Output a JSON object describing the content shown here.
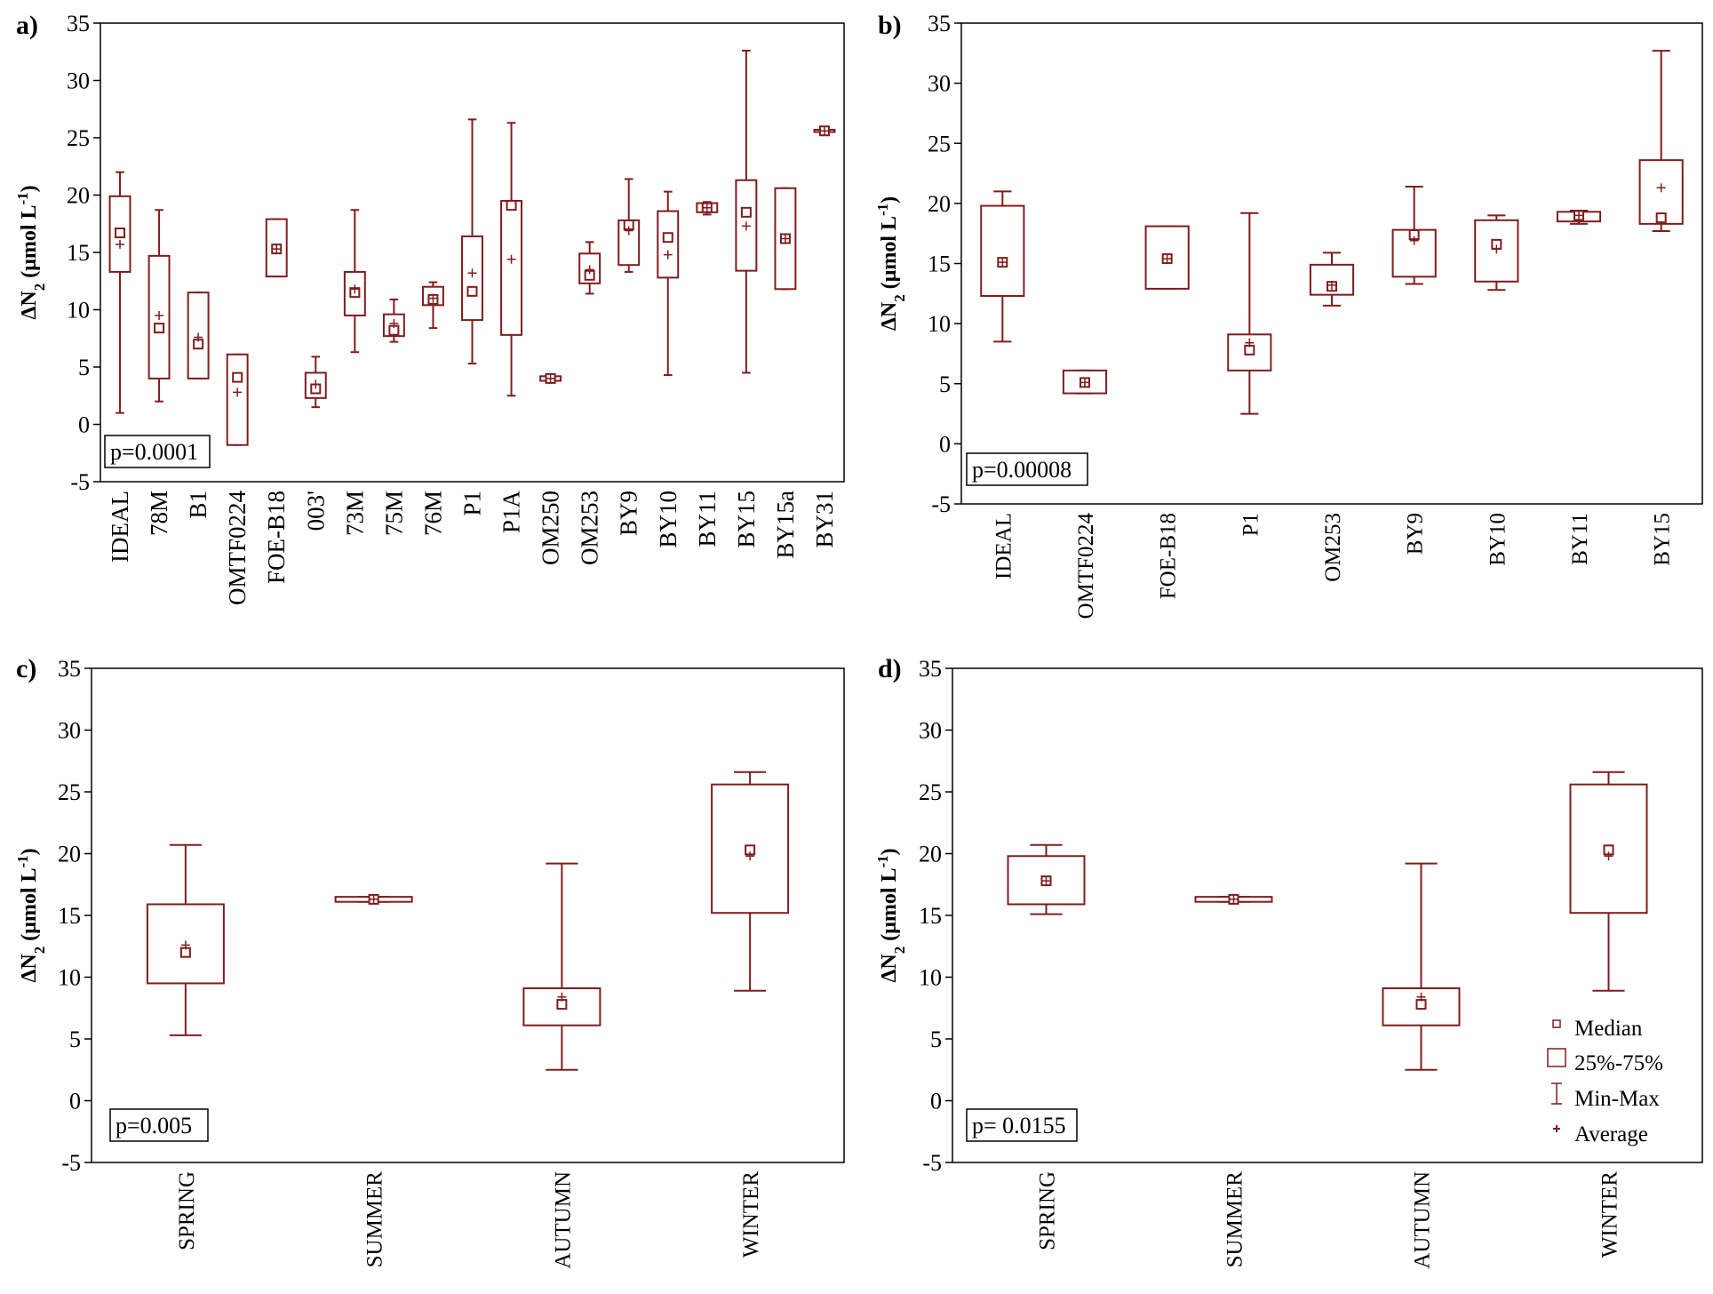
{
  "colors": {
    "box": "#7f1d1d",
    "axis": "#000000",
    "frame": "#000000"
  },
  "common": {
    "ylabel_main": "ΔN",
    "ylabel_sub": "2",
    "ylabel_unit": " (μmol L",
    "ylabel_exp": "-1",
    "ylabel_close": ")",
    "ylim": [
      -5,
      35
    ],
    "yticks": [
      "-5",
      "0",
      "5",
      "10",
      "15",
      "20",
      "25",
      "30",
      "35"
    ]
  },
  "legend": {
    "median": "Median",
    "box": "25%-75%",
    "range": "Min-Max",
    "average": "Average"
  },
  "chart_data": [
    {
      "type": "box",
      "panel_label": "a)",
      "pvalue": "p=0.0001",
      "categories": [
        "IDEAL",
        "78M",
        "B1",
        "OMTF0224",
        "FOE-B18",
        "003'",
        "73M",
        "75M",
        "76M",
        "P1",
        "P1A",
        "OM250",
        "OM253",
        "BY9",
        "BY10",
        "BY11",
        "BY15",
        "BY15a",
        "BY31"
      ],
      "stats": [
        {
          "min": 1.0,
          "q1": 13.3,
          "median": 16.7,
          "q3": 19.9,
          "max": 22.0,
          "mean": 15.7
        },
        {
          "min": 2.0,
          "q1": 4.0,
          "median": 8.4,
          "q3": 14.7,
          "max": 18.7,
          "mean": 9.5
        },
        {
          "min": 4.0,
          "q1": 4.0,
          "median": 7.0,
          "q3": 11.5,
          "max": 11.5,
          "mean": 7.6
        },
        {
          "min": -1.8,
          "q1": -1.8,
          "median": 4.1,
          "q3": 6.1,
          "max": 6.1,
          "mean": 2.8
        },
        {
          "min": 12.9,
          "q1": 12.9,
          "median": 15.3,
          "q3": 17.9,
          "max": 17.9,
          "mean": 15.3
        },
        {
          "min": 1.5,
          "q1": 2.3,
          "median": 3.1,
          "q3": 4.5,
          "max": 5.9,
          "mean": 3.5
        },
        {
          "min": 6.3,
          "q1": 9.5,
          "median": 11.5,
          "q3": 13.3,
          "max": 18.7,
          "mean": 11.8
        },
        {
          "min": 7.2,
          "q1": 7.7,
          "median": 8.2,
          "q3": 9.6,
          "max": 10.9,
          "mean": 8.8
        },
        {
          "min": 8.4,
          "q1": 10.4,
          "median": 10.9,
          "q3": 12.0,
          "max": 12.4,
          "mean": 11.0
        },
        {
          "min": 5.3,
          "q1": 9.1,
          "median": 11.6,
          "q3": 16.4,
          "max": 26.6,
          "mean": 13.2
        },
        {
          "min": 2.5,
          "q1": 7.8,
          "median": 19.1,
          "q3": 19.5,
          "max": 26.3,
          "mean": 14.4
        },
        {
          "min": 3.8,
          "q1": 3.8,
          "median": 4.0,
          "q3": 4.2,
          "max": 4.2,
          "mean": 4.0
        },
        {
          "min": 11.4,
          "q1": 12.3,
          "median": 13.0,
          "q3": 14.9,
          "max": 15.9,
          "mean": 13.5
        },
        {
          "min": 13.3,
          "q1": 13.9,
          "median": 17.4,
          "q3": 17.8,
          "max": 21.4,
          "mean": 16.9
        },
        {
          "min": 4.3,
          "q1": 12.8,
          "median": 16.3,
          "q3": 18.6,
          "max": 20.3,
          "mean": 14.8
        },
        {
          "min": 18.3,
          "q1": 18.5,
          "median": 18.9,
          "q3": 19.3,
          "max": 19.4,
          "mean": 18.9
        },
        {
          "min": 4.5,
          "q1": 13.4,
          "median": 18.5,
          "q3": 21.3,
          "max": 32.6,
          "mean": 17.3
        },
        {
          "min": 11.8,
          "q1": 11.8,
          "median": 16.2,
          "q3": 20.6,
          "max": 20.6,
          "mean": 16.2
        },
        {
          "min": 25.5,
          "q1": 25.5,
          "median": 25.6,
          "q3": 25.7,
          "max": 25.7,
          "mean": 25.6
        }
      ]
    },
    {
      "type": "box",
      "panel_label": "b)",
      "pvalue": "p=0.00008",
      "categories": [
        "IDEAL",
        "OMTF0224",
        "FOE-B18",
        "P1",
        "OM253",
        "BY9",
        "BY10",
        "BY11",
        "BY15"
      ],
      "stats": [
        {
          "min": 8.5,
          "q1": 12.3,
          "median": 15.1,
          "q3": 19.8,
          "max": 21.0,
          "mean": 15.1
        },
        {
          "min": 4.2,
          "q1": 4.2,
          "median": 5.1,
          "q3": 6.1,
          "max": 6.1,
          "mean": 5.1
        },
        {
          "min": 12.9,
          "q1": 12.9,
          "median": 15.4,
          "q3": 18.1,
          "max": 18.1,
          "mean": 15.4
        },
        {
          "min": 2.5,
          "q1": 6.1,
          "median": 7.8,
          "q3": 9.1,
          "max": 19.2,
          "mean": 8.4
        },
        {
          "min": 11.5,
          "q1": 12.4,
          "median": 13.1,
          "q3": 14.9,
          "max": 15.9,
          "mean": 13.2
        },
        {
          "min": 13.3,
          "q1": 13.9,
          "median": 17.4,
          "q3": 17.8,
          "max": 21.4,
          "mean": 16.9
        },
        {
          "min": 12.8,
          "q1": 13.5,
          "median": 16.6,
          "q3": 18.6,
          "max": 19.0,
          "mean": 16.2
        },
        {
          "min": 18.3,
          "q1": 18.5,
          "median": 19.0,
          "q3": 19.3,
          "max": 19.4,
          "mean": 19.0
        },
        {
          "min": 17.7,
          "q1": 18.3,
          "median": 18.8,
          "q3": 23.6,
          "max": 32.7,
          "mean": 21.3
        }
      ]
    },
    {
      "type": "box",
      "panel_label": "c)",
      "pvalue": "p=0.005",
      "categories": [
        "SPRING",
        "SUMMER",
        "AUTUMN",
        "WINTER"
      ],
      "stats": [
        {
          "min": 5.3,
          "q1": 9.5,
          "median": 12.0,
          "q3": 15.9,
          "max": 20.7,
          "mean": 12.6
        },
        {
          "min": 16.1,
          "q1": 16.1,
          "median": 16.3,
          "q3": 16.5,
          "max": 16.5,
          "mean": 16.3
        },
        {
          "min": 2.5,
          "q1": 6.1,
          "median": 7.8,
          "q3": 9.1,
          "max": 19.2,
          "mean": 8.4
        },
        {
          "min": 8.9,
          "q1": 15.2,
          "median": 20.3,
          "q3": 25.6,
          "max": 26.6,
          "mean": 19.8
        }
      ]
    },
    {
      "type": "box",
      "panel_label": "d)",
      "pvalue": "p= 0.0155",
      "categories": [
        "SPRING",
        "SUMMER",
        "AUTUMN",
        "WINTER"
      ],
      "stats": [
        {
          "min": 15.1,
          "q1": 15.9,
          "median": 17.8,
          "q3": 19.8,
          "max": 20.7,
          "mean": 17.8
        },
        {
          "min": 16.1,
          "q1": 16.1,
          "median": 16.3,
          "q3": 16.5,
          "max": 16.5,
          "mean": 16.3
        },
        {
          "min": 2.5,
          "q1": 6.1,
          "median": 7.8,
          "q3": 9.1,
          "max": 19.2,
          "mean": 8.4
        },
        {
          "min": 8.9,
          "q1": 15.2,
          "median": 20.3,
          "q3": 25.6,
          "max": 26.6,
          "mean": 19.8
        }
      ]
    }
  ]
}
